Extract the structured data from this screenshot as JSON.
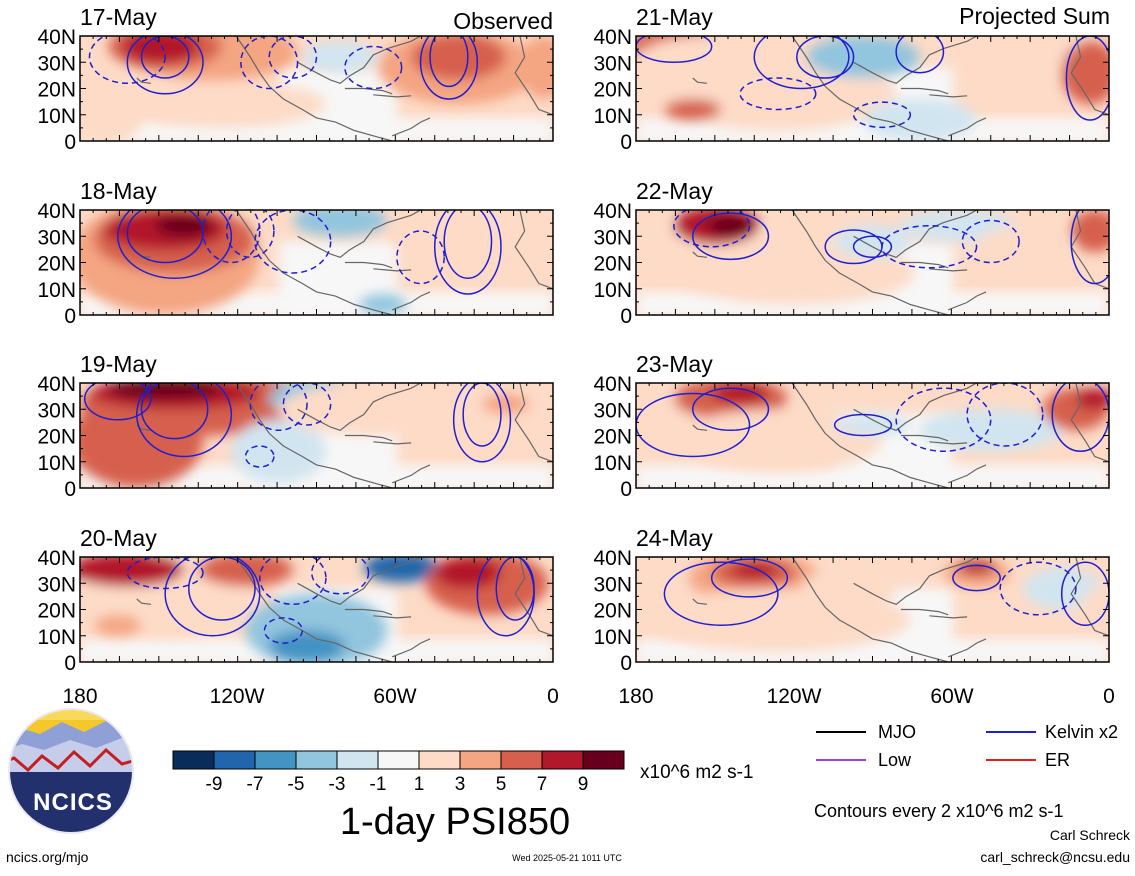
{
  "header": {
    "left_label": "Observed",
    "right_label": "Projected Sum"
  },
  "panels": [
    {
      "date": "17-May",
      "column": "left",
      "row": 0
    },
    {
      "date": "18-May",
      "column": "left",
      "row": 1
    },
    {
      "date": "19-May",
      "column": "left",
      "row": 2
    },
    {
      "date": "20-May",
      "column": "left",
      "row": 3
    },
    {
      "date": "21-May",
      "column": "right",
      "row": 0
    },
    {
      "date": "22-May",
      "column": "right",
      "row": 1
    },
    {
      "date": "23-May",
      "column": "right",
      "row": 2
    },
    {
      "date": "24-May",
      "column": "right",
      "row": 3
    }
  ],
  "lat_labels": [
    "40N",
    "30N",
    "20N",
    "10N",
    "0"
  ],
  "lon_labels": [
    "180",
    "120W",
    "60W",
    "0"
  ],
  "colorbar": {
    "ticks": [
      "-9",
      "-7",
      "-5",
      "-3",
      "-1",
      "1",
      "3",
      "5",
      "7",
      "9"
    ],
    "colors": [
      "#0a2c5b",
      "#2166ac",
      "#4393c3",
      "#92c5de",
      "#d1e5f0",
      "#f7f7f7",
      "#fddbc7",
      "#f4a582",
      "#d6604d",
      "#b2182b",
      "#67001f"
    ],
    "units": "x10^6 m2 s-1"
  },
  "title": "1-day PSI850",
  "legend": {
    "items": [
      {
        "label": "MJO",
        "color": "#000000"
      },
      {
        "label": "Kelvin x2",
        "color": "#1f1fd0"
      },
      {
        "label": "Low",
        "color": "#a040e0"
      },
      {
        "label": "ER",
        "color": "#e02020"
      }
    ],
    "contour_note": "Contours every 2 x10^6 m2 s-1"
  },
  "credits": {
    "author": "Carl Schreck",
    "email": "carl_schreck@ncsu.edu",
    "url": "ncics.org/mjo",
    "timestamp": "Wed 2025-05-21 1011 UTC"
  },
  "logo": {
    "text": "NCICS"
  }
}
